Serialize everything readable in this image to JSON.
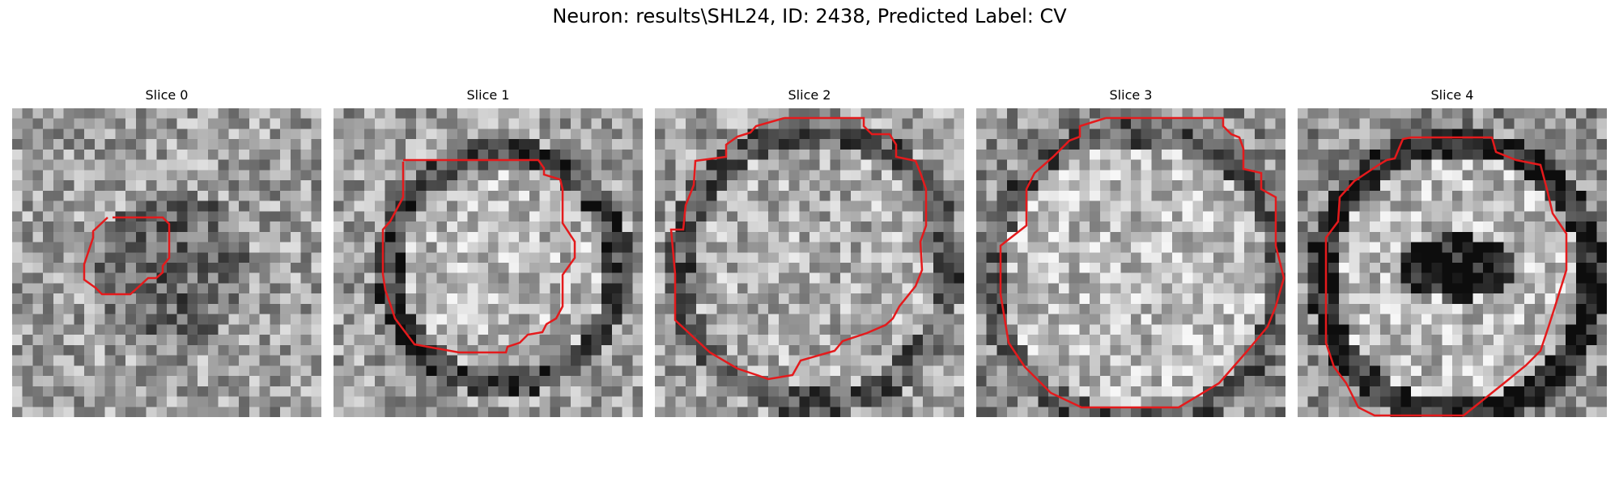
{
  "figure": {
    "title": "Neuron: results\\SHL24, ID: 2438, Predicted Label: CV",
    "contour_color": "#e41a1c"
  },
  "slices": [
    {
      "title": "Slice 0"
    },
    {
      "title": "Slice 1"
    },
    {
      "title": "Slice 2"
    },
    {
      "title": "Slice 3"
    },
    {
      "title": "Slice 4"
    }
  ]
}
